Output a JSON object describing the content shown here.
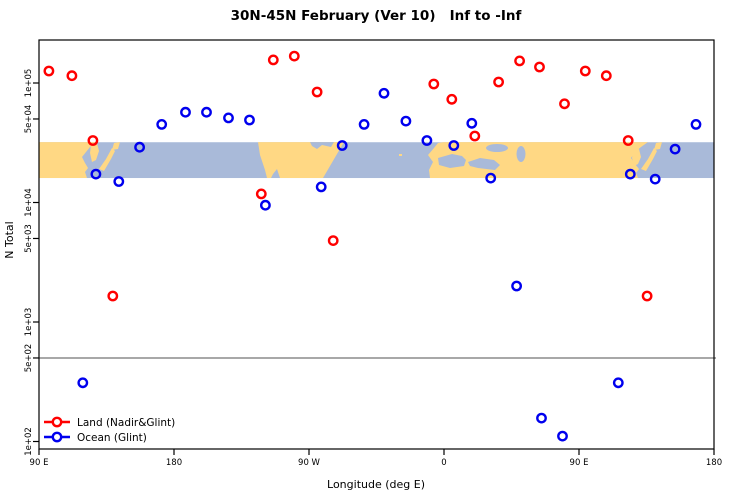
{
  "title": "30N-45N February (Ver 10)   Inf to -Inf",
  "axes": {
    "x_label": "Longitude (deg E)",
    "y_label": "N Total",
    "x_ticks": [
      {
        "lon": 90,
        "label": "90 E"
      },
      {
        "lon": 180,
        "label": "180"
      },
      {
        "lon": 270,
        "label": "90 W"
      },
      {
        "lon": 360,
        "label": "0"
      },
      {
        "lon": 450,
        "label": "90 E"
      },
      {
        "lon": 540,
        "label": "180"
      }
    ],
    "y_ticks": [
      {
        "value": 100000,
        "label": "1e+05"
      },
      {
        "value": 50000,
        "label": "5e+04"
      },
      {
        "value": 10000,
        "label": "1e+04"
      },
      {
        "value": 5000,
        "label": "5e+03"
      },
      {
        "value": 1000,
        "label": "1e+03"
      },
      {
        "value": 500,
        "label": "5e+02"
      },
      {
        "value": 100,
        "label": "1e+02"
      }
    ],
    "x_range_deg": [
      90,
      540
    ],
    "y_range": [
      90,
      230000
    ],
    "y_scale": "log"
  },
  "legend": {
    "items": [
      {
        "label": "Land (Nadir&Glint)",
        "color": "#FF0000"
      },
      {
        "label": "Ocean (Glint)",
        "color": "#0000EE"
      }
    ]
  },
  "colors": {
    "land_series": "#FF0000",
    "ocean_series": "#0000EE",
    "map_land": "#FFD884",
    "map_ocean": "#A9BAD9",
    "reference_line": "#8C8C8C",
    "axis": "#000000"
  },
  "chart_data": {
    "type": "scatter",
    "title": "30N-45N February (Ver 10)   Inf to -Inf",
    "xlabel": "Longitude (deg E)",
    "ylabel": "N Total",
    "x_axis_sequence_deg": [
      90,
      180,
      270,
      360,
      450,
      540
    ],
    "series": [
      {
        "name": "Land (Nadir&Glint)",
        "color": "#FF0000",
        "marker": "open-circle",
        "points_lon_n": [
          [
            96.6,
            126000
          ],
          [
            111.9,
            115000
          ],
          [
            125.9,
            33000
          ],
          [
            139.2,
            1650
          ],
          [
            238.2,
            11800
          ],
          [
            246.2,
            156000
          ],
          [
            260.2,
            168000
          ],
          [
            275.4,
            84000
          ],
          [
            286.1,
            4800
          ],
          [
            353.2,
            98000
          ],
          [
            365.2,
            73000
          ],
          [
            380.5,
            36000
          ],
          [
            396.4,
            102000
          ],
          [
            410.4,
            153000
          ],
          [
            423.7,
            136000
          ],
          [
            440.3,
            67000
          ],
          [
            454.2,
            126000
          ],
          [
            468.2,
            115000
          ],
          [
            482.8,
            33000
          ],
          [
            495.4,
            1650
          ]
        ]
      },
      {
        "name": "Ocean (Glint)",
        "color": "#0000EE",
        "marker": "open-circle",
        "points_lon_n": [
          [
            119.2,
            310
          ],
          [
            127.9,
            17300
          ],
          [
            143.2,
            15000
          ],
          [
            157.1,
            29000
          ],
          [
            171.8,
            45000
          ],
          [
            187.7,
            57000
          ],
          [
            201.7,
            57000
          ],
          [
            216.3,
            51000
          ],
          [
            230.3,
            49000
          ],
          [
            240.9,
            9500
          ],
          [
            278.1,
            13500
          ],
          [
            292.1,
            30000
          ],
          [
            306.7,
            45000
          ],
          [
            320.0,
            82000
          ],
          [
            334.6,
            48000
          ],
          [
            348.6,
            33000
          ],
          [
            366.5,
            30000
          ],
          [
            378.5,
            46000
          ],
          [
            391.1,
            16000
          ],
          [
            408.4,
            2000
          ],
          [
            425.0,
            157
          ],
          [
            439.0,
            111
          ],
          [
            476.2,
            310
          ],
          [
            484.2,
            17300
          ],
          [
            500.8,
            15700
          ],
          [
            514.1,
            28000
          ],
          [
            528.0,
            45000
          ]
        ]
      }
    ],
    "reference_line": {
      "value": 500,
      "orientation": "horizontal"
    },
    "map_band": {
      "description": "30N-45N world coastline strip repeated along longitude axis",
      "value_top": 32000,
      "value_bottom": 16000,
      "land_color": "#FFD884",
      "ocean_color": "#A9BAD9"
    },
    "legend_position": "bottom-left",
    "grid": false
  }
}
